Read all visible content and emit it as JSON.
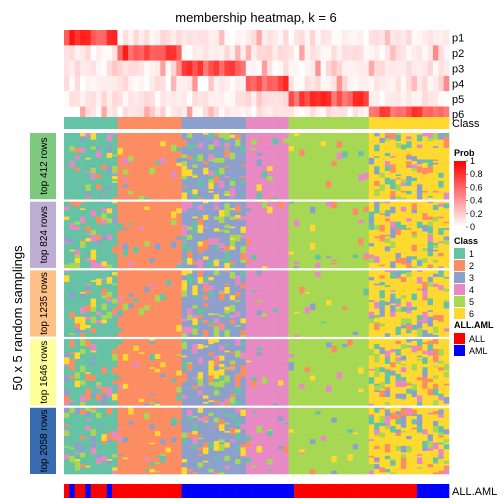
{
  "chart_data": {
    "type": "heatmap",
    "title": "membership heatmap, k = 6",
    "y_axis_label": "50 x 5 random samplings",
    "n_columns": 72,
    "prob_rows": [
      "p1",
      "p2",
      "p3",
      "p4",
      "p5",
      "p6"
    ],
    "class_row_label": "Class",
    "annotation_row_label": "ALL.AML",
    "column_class_groups": [
      {
        "class": "1",
        "columns": 10
      },
      {
        "class": "2",
        "columns": 12
      },
      {
        "class": "3",
        "columns": 12
      },
      {
        "class": "4",
        "columns": 8
      },
      {
        "class": "5",
        "columns": 15
      },
      {
        "class": "6",
        "columns": 15
      }
    ],
    "row_groups": [
      {
        "label": "top 412 rows",
        "color": "#7FC97F"
      },
      {
        "label": "top 824 rows",
        "color": "#BEAED4"
      },
      {
        "label": "top 1235 rows",
        "color": "#FDC086"
      },
      {
        "label": "top 1646 rows",
        "color": "#FFFF99"
      },
      {
        "label": "top 2058 rows",
        "color": "#386CB0"
      }
    ],
    "rows_per_group": 50,
    "legend_prob": {
      "title": "Prob",
      "ticks": [
        "1",
        "0.8",
        "0.6",
        "0.4",
        "0.2",
        "0"
      ],
      "colors": [
        "#ffffff",
        "#ff0000"
      ]
    },
    "legend_class": {
      "title": "Class",
      "items": [
        {
          "label": "1",
          "color": "#66C2A5"
        },
        {
          "label": "2",
          "color": "#FC8D62"
        },
        {
          "label": "3",
          "color": "#8DA0CB"
        },
        {
          "label": "4",
          "color": "#E78AC3"
        },
        {
          "label": "5",
          "color": "#A6D854"
        },
        {
          "label": "6",
          "color": "#FFD92F"
        }
      ]
    },
    "legend_annotation": {
      "title": "ALL.AML",
      "items": [
        {
          "label": "ALL",
          "color": "#ff0000"
        },
        {
          "label": "AML",
          "color": "#0000ff"
        }
      ]
    },
    "annotation_values": [
      "ALL",
      "AML",
      "ALL",
      "ALL",
      "AML",
      "ALL",
      "ALL",
      "ALL",
      "AML",
      "ALL",
      "ALL",
      "ALL",
      "ALL",
      "ALL",
      "ALL",
      "ALL",
      "ALL",
      "ALL",
      "ALL",
      "ALL",
      "ALL",
      "ALL",
      "AML",
      "AML",
      "AML",
      "AML",
      "AML",
      "AML",
      "AML",
      "AML",
      "AML",
      "AML",
      "AML",
      "AML",
      "AML",
      "AML",
      "AML",
      "AML",
      "AML",
      "AML",
      "AML",
      "AML",
      "AML",
      "ALL",
      "ALL",
      "ALL",
      "ALL",
      "ALL",
      "ALL",
      "ALL",
      "ALL",
      "ALL",
      "ALL",
      "ALL",
      "ALL",
      "ALL",
      "ALL",
      "ALL",
      "ALL",
      "ALL",
      "ALL",
      "ALL",
      "ALL",
      "ALL",
      "ALL",
      "ALL",
      "AML",
      "AML",
      "AML",
      "AML",
      "AML",
      "AML"
    ]
  }
}
